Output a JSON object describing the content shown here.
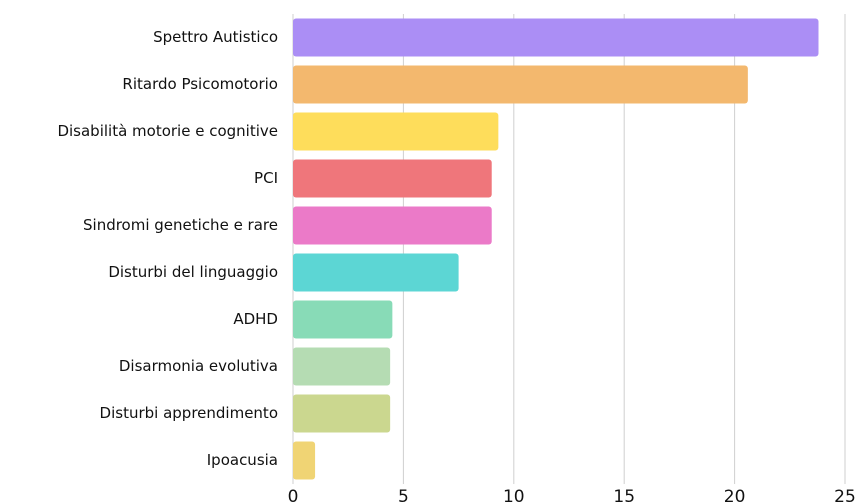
{
  "chart_data": {
    "type": "bar",
    "orientation": "horizontal",
    "categories": [
      "Spettro Autistico",
      "Ritardo Psicomotorio",
      "Disabilità motorie e cognitive",
      "PCI",
      "Sindromi genetiche e rare",
      "Disturbi del linguaggio",
      "ADHD",
      "Disarmonia evolutiva",
      "Disturbi apprendimento",
      "Ipoacusia"
    ],
    "values": [
      23.8,
      20.6,
      9.3,
      9.0,
      9.0,
      7.5,
      4.5,
      4.4,
      4.4,
      1.0
    ],
    "colors": [
      "#ab8ef5",
      "#f3b86e",
      "#fedd5b",
      "#ef767b",
      "#eb7ac8",
      "#5cd6d4",
      "#88dbb7",
      "#b5dcb3",
      "#cbd78f",
      "#f0d474"
    ],
    "xlim": [
      0,
      25
    ],
    "xticks": [
      0,
      5,
      10,
      15,
      20,
      25
    ],
    "grid": true
  }
}
